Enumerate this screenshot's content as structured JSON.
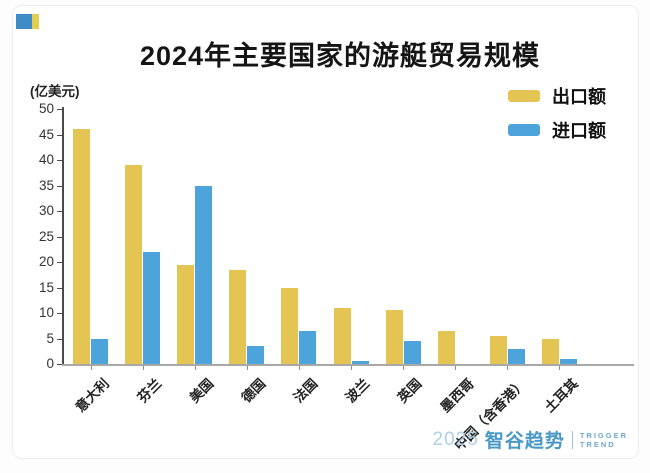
{
  "page": {
    "title": "2024年主要国家的游艇贸易规模",
    "y_axis_unit": "(亿美元)",
    "legend": [
      {
        "label": "出口额",
        "color": "#e4c453"
      },
      {
        "label": "进口额",
        "color": "#4da4db"
      }
    ],
    "footer": {
      "year": "2025",
      "brand": "智谷趋势",
      "tagline_line1": "TRIGGER",
      "tagline_line2": "TREND"
    }
  },
  "colors": {
    "export_bar": "#e4c453",
    "import_bar": "#4da4db",
    "icon_blue": "#3e8cc7",
    "icon_yellow": "#e3cd4e",
    "axis": "#4a4a4a",
    "baseline": "#a8a8a8",
    "brand_blue": "#4a99c5"
  },
  "chart_data": {
    "type": "bar",
    "title": "2024年主要国家的游艇贸易规模",
    "unit_label": "(亿美元)",
    "categories": [
      "意大利",
      "芬兰",
      "美国",
      "德国",
      "法国",
      "波兰",
      "英国",
      "墨西哥",
      "中国（含香港）",
      "土耳其"
    ],
    "series": [
      {
        "name": "出口额",
        "color": "#e4c453",
        "values": [
          46,
          39,
          19.5,
          18.5,
          15,
          11,
          10.5,
          6.5,
          5.5,
          5
        ]
      },
      {
        "name": "进口额",
        "color": "#4da4db",
        "values": [
          5,
          22,
          35,
          3.5,
          6.5,
          0.5,
          4.5,
          0,
          3,
          1
        ]
      }
    ],
    "ylim": [
      0,
      50
    ],
    "y_tick_step": 5,
    "grid": false,
    "legend_position": "top-right",
    "x_label_rotation": -45
  }
}
